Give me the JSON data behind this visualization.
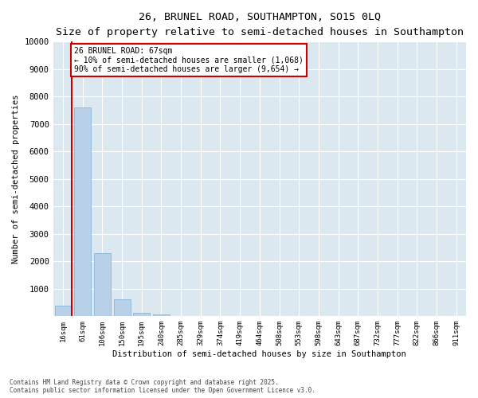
{
  "title1": "26, BRUNEL ROAD, SOUTHAMPTON, SO15 0LQ",
  "title2": "Size of property relative to semi-detached houses in Southampton",
  "xlabel": "Distribution of semi-detached houses by size in Southampton",
  "ylabel": "Number of semi-detached properties",
  "bin_labels": [
    "16sqm",
    "61sqm",
    "106sqm",
    "150sqm",
    "195sqm",
    "240sqm",
    "285sqm",
    "329sqm",
    "374sqm",
    "419sqm",
    "464sqm",
    "508sqm",
    "553sqm",
    "598sqm",
    "643sqm",
    "687sqm",
    "732sqm",
    "777sqm",
    "822sqm",
    "866sqm",
    "911sqm"
  ],
  "bar_values": [
    400,
    7600,
    2300,
    620,
    120,
    60,
    20,
    10,
    5,
    3,
    2,
    1,
    1,
    0,
    0,
    0,
    0,
    0,
    0,
    0,
    0
  ],
  "property_label": "26 BRUNEL ROAD: 67sqm",
  "pct_smaller": 10,
  "pct_larger": 90,
  "count_smaller": 1068,
  "count_larger": 9654,
  "property_bin_index": 0,
  "vline_x_offset": 0.43,
  "bar_color": "#b8d0e8",
  "bar_edge_color": "#7aafd4",
  "vline_color": "#cc0000",
  "box_color": "#cc0000",
  "bg_color": "#dce8f0",
  "grid_color": "#ffffff",
  "fig_bg_color": "#ffffff",
  "ylim": [
    0,
    10000
  ],
  "yticks": [
    0,
    1000,
    2000,
    3000,
    4000,
    5000,
    6000,
    7000,
    8000,
    9000,
    10000
  ],
  "title1_fontsize": 9.5,
  "title2_fontsize": 8,
  "footnote": "Contains HM Land Registry data © Crown copyright and database right 2025.\nContains public sector information licensed under the Open Government Licence v3.0."
}
